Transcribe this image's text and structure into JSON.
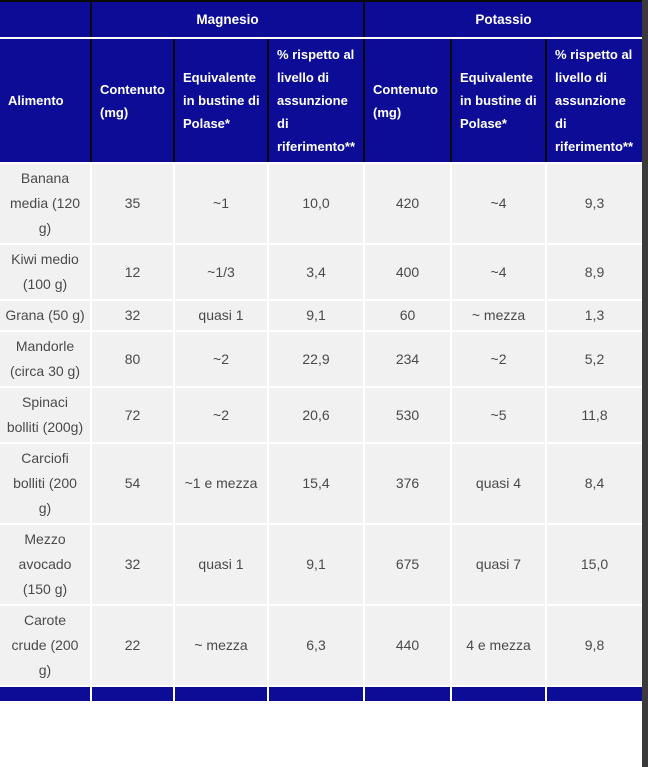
{
  "colors": {
    "header_bg": "#0c0c96",
    "header_text": "#ffffff",
    "divider_black": "#0a0a0a",
    "cell_bg": "#f1f1f1",
    "cell_text": "#4a4a4a",
    "right_strip": "#3a3a3a"
  },
  "header": {
    "groups": [
      "Magnesio",
      "Potassio"
    ],
    "col_food": "Alimento",
    "subcols": [
      "Contenuto (mg)",
      "Equivalente in bustine di Polase*",
      "% rispetto al livello di assunzione di riferimento**"
    ]
  },
  "rows": [
    {
      "food": "Banana media (120 g)",
      "cells": [
        "35",
        "~1",
        "10,0",
        "420",
        "~4",
        "9,3"
      ]
    },
    {
      "food": "Kiwi medio (100 g)",
      "cells": [
        "12",
        "~1/3",
        "3,4",
        "400",
        "~4",
        "8,9"
      ]
    },
    {
      "food": "Grana (50 g)",
      "cells": [
        "32",
        "quasi 1",
        "9,1",
        "60",
        "~ mezza",
        "1,3"
      ]
    },
    {
      "food": "Mandorle (circa 30 g)",
      "cells": [
        "80",
        "~2",
        "22,9",
        "234",
        "~2",
        "5,2"
      ]
    },
    {
      "food": "Spinaci bolliti (200g)",
      "cells": [
        "72",
        "~2",
        "20,6",
        "530",
        "~5",
        "11,8"
      ]
    },
    {
      "food": "Carciofi bolliti (200 g)",
      "cells": [
        "54",
        "~1 e mezza",
        "15,4",
        "376",
        "quasi 4",
        "8,4"
      ]
    },
    {
      "food": "Mezzo avocado (150 g)",
      "cells": [
        "32",
        "quasi 1",
        "9,1",
        "675",
        "quasi 7",
        "15,0"
      ]
    },
    {
      "food": "Carote crude (200 g)",
      "cells": [
        "22",
        "~ mezza",
        "6,3",
        "440",
        "4 e mezza",
        "9,8"
      ]
    }
  ],
  "chart_data": {
    "type": "table",
    "title": "",
    "column_groups": [
      "",
      "Magnesio",
      "Potassio"
    ],
    "columns": [
      "Alimento",
      "Contenuto (mg)",
      "Equivalente in bustine di Polase*",
      "% rispetto al livello di assunzione di riferimento**",
      "Contenuto (mg)",
      "Equivalente in bustine di Polase*",
      "% rispetto al livello di assunzione di riferimento**"
    ],
    "rows": [
      [
        "Banana media (120 g)",
        "35",
        "~1",
        "10,0",
        "420",
        "~4",
        "9,3"
      ],
      [
        "Kiwi medio (100 g)",
        "12",
        "~1/3",
        "3,4",
        "400",
        "~4",
        "8,9"
      ],
      [
        "Grana (50 g)",
        "32",
        "quasi 1",
        "9,1",
        "60",
        "~ mezza",
        "1,3"
      ],
      [
        "Mandorle (circa 30 g)",
        "80",
        "~2",
        "22,9",
        "234",
        "~2",
        "5,2"
      ],
      [
        "Spinaci bolliti (200g)",
        "72",
        "~2",
        "20,6",
        "530",
        "~5",
        "11,8"
      ],
      [
        "Carciofi bolliti (200 g)",
        "54",
        "~1 e mezza",
        "15,4",
        "376",
        "quasi 4",
        "8,4"
      ],
      [
        "Mezzo avocado (150 g)",
        "32",
        "quasi 1",
        "9,1",
        "675",
        "quasi 7",
        "15,0"
      ],
      [
        "Carote crude (200 g)",
        "22",
        "~ mezza",
        "6,3",
        "440",
        "4 e mezza",
        "9,8"
      ]
    ]
  }
}
